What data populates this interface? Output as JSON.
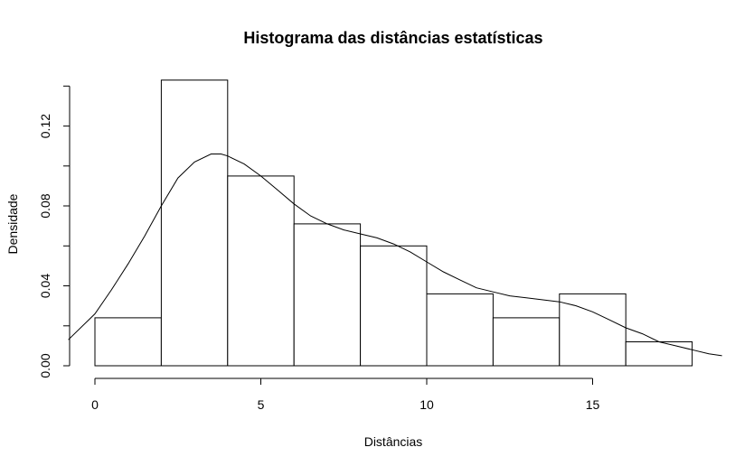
{
  "chart_data": {
    "type": "bar",
    "title": "Histograma das distâncias estatísticas",
    "xlabel": "Distâncias",
    "ylabel": "Densidade",
    "bins": [
      {
        "start": 0,
        "end": 2,
        "density": 0.024
      },
      {
        "start": 2,
        "end": 4,
        "density": 0.143
      },
      {
        "start": 4,
        "end": 6,
        "density": 0.095
      },
      {
        "start": 6,
        "end": 8,
        "density": 0.071
      },
      {
        "start": 8,
        "end": 10,
        "density": 0.06
      },
      {
        "start": 10,
        "end": 12,
        "density": 0.036
      },
      {
        "start": 12,
        "end": 14,
        "density": 0.024
      },
      {
        "start": 14,
        "end": 16,
        "density": 0.036
      },
      {
        "start": 16,
        "end": 18,
        "density": 0.012
      }
    ],
    "density_curve": {
      "x": [
        -0.8,
        0,
        0.5,
        1,
        1.5,
        2,
        2.5,
        3,
        3.5,
        3.8,
        4,
        4.5,
        5,
        5.5,
        6,
        6.5,
        7,
        7.5,
        8,
        8.5,
        9,
        9.5,
        10,
        10.5,
        11,
        11.5,
        12,
        12.5,
        13,
        13.5,
        14,
        14.5,
        15,
        15.5,
        16,
        16.5,
        17,
        17.5,
        18,
        18.5,
        18.9
      ],
      "y": [
        0.013,
        0.026,
        0.038,
        0.051,
        0.065,
        0.08,
        0.094,
        0.102,
        0.106,
        0.106,
        0.105,
        0.101,
        0.095,
        0.088,
        0.081,
        0.075,
        0.071,
        0.068,
        0.066,
        0.064,
        0.061,
        0.057,
        0.052,
        0.047,
        0.043,
        0.039,
        0.037,
        0.035,
        0.034,
        0.033,
        0.032,
        0.03,
        0.027,
        0.023,
        0.019,
        0.016,
        0.012,
        0.01,
        0.008,
        0.006,
        0.005
      ]
    },
    "x_ticks": [
      0,
      5,
      10,
      15
    ],
    "y_ticks": [
      0.0,
      0.04,
      0.08,
      0.12
    ],
    "x_tick_labels": [
      "0",
      "5",
      "10",
      "15"
    ],
    "y_tick_labels": [
      "0.00",
      "0.04",
      "0.08",
      "0.12"
    ],
    "xlim": [
      -0.8,
      19.1
    ],
    "ylim": [
      0,
      0.14
    ],
    "grid": false,
    "colors": {
      "bar_fill": "#ffffff",
      "stroke": "#000000"
    }
  }
}
